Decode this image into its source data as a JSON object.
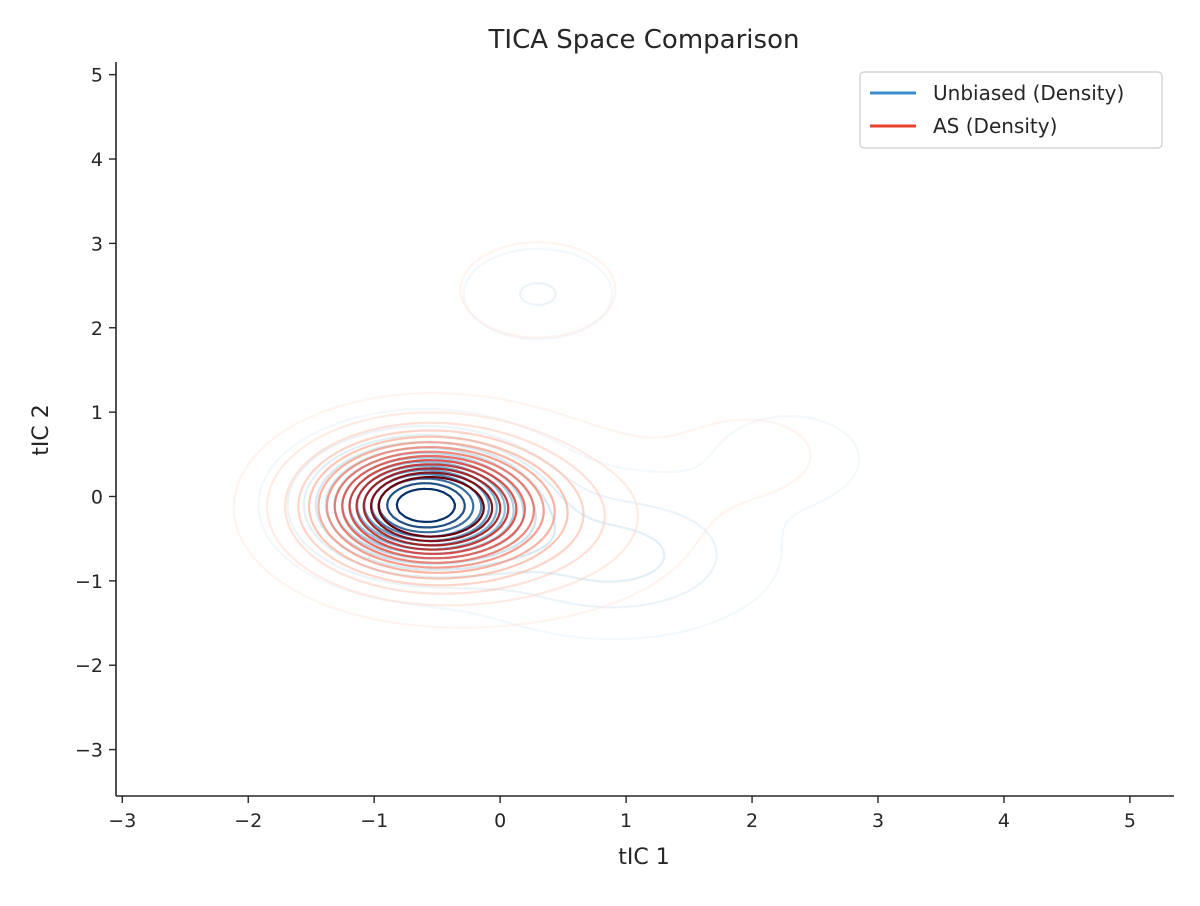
{
  "chart_data": {
    "type": "contour",
    "title": "TICA Space Comparison",
    "xlabel": "tIC 1",
    "ylabel": "tIC 2",
    "xlim": [
      -3.05,
      5.35
    ],
    "ylim": [
      -3.55,
      5.15
    ],
    "xticks": [
      -3,
      -2,
      -1,
      0,
      1,
      2,
      3,
      4,
      5
    ],
    "yticks": [
      -3,
      -2,
      -1,
      0,
      1,
      2,
      3,
      4,
      5
    ],
    "xtick_labels": [
      "−3",
      "−2",
      "−1",
      "0",
      "1",
      "2",
      "3",
      "4",
      "5"
    ],
    "ytick_labels": [
      "−3",
      "−2",
      "−1",
      "0",
      "1",
      "2",
      "3",
      "4",
      "5"
    ],
    "grid": false,
    "legend_position": "top-right",
    "series": [
      {
        "name": "Unbiased (Density)",
        "color": "#3a8ecd",
        "colormap": "Blues",
        "kind": "kde-contour",
        "levels": 14,
        "mode_center": [
          -0.6,
          -0.1
        ],
        "secondary_mode_center": [
          0.3,
          2.4
        ],
        "tertiary_mode_center": [
          2.3,
          0.45
        ],
        "extent_x": [
          -2.35,
          3.45
        ],
        "extent_y": [
          -2.3,
          3.45
        ]
      },
      {
        "name": "AS (Density)",
        "color": "#e8412d",
        "colormap": "Reds",
        "kind": "kde-contour",
        "levels": 14,
        "mode_center": [
          -0.6,
          -0.1
        ],
        "secondary_mode_center": [
          0.3,
          2.4
        ],
        "extent_x": [
          -2.5,
          3.0
        ],
        "extent_y": [
          -2.4,
          3.45
        ]
      }
    ]
  }
}
